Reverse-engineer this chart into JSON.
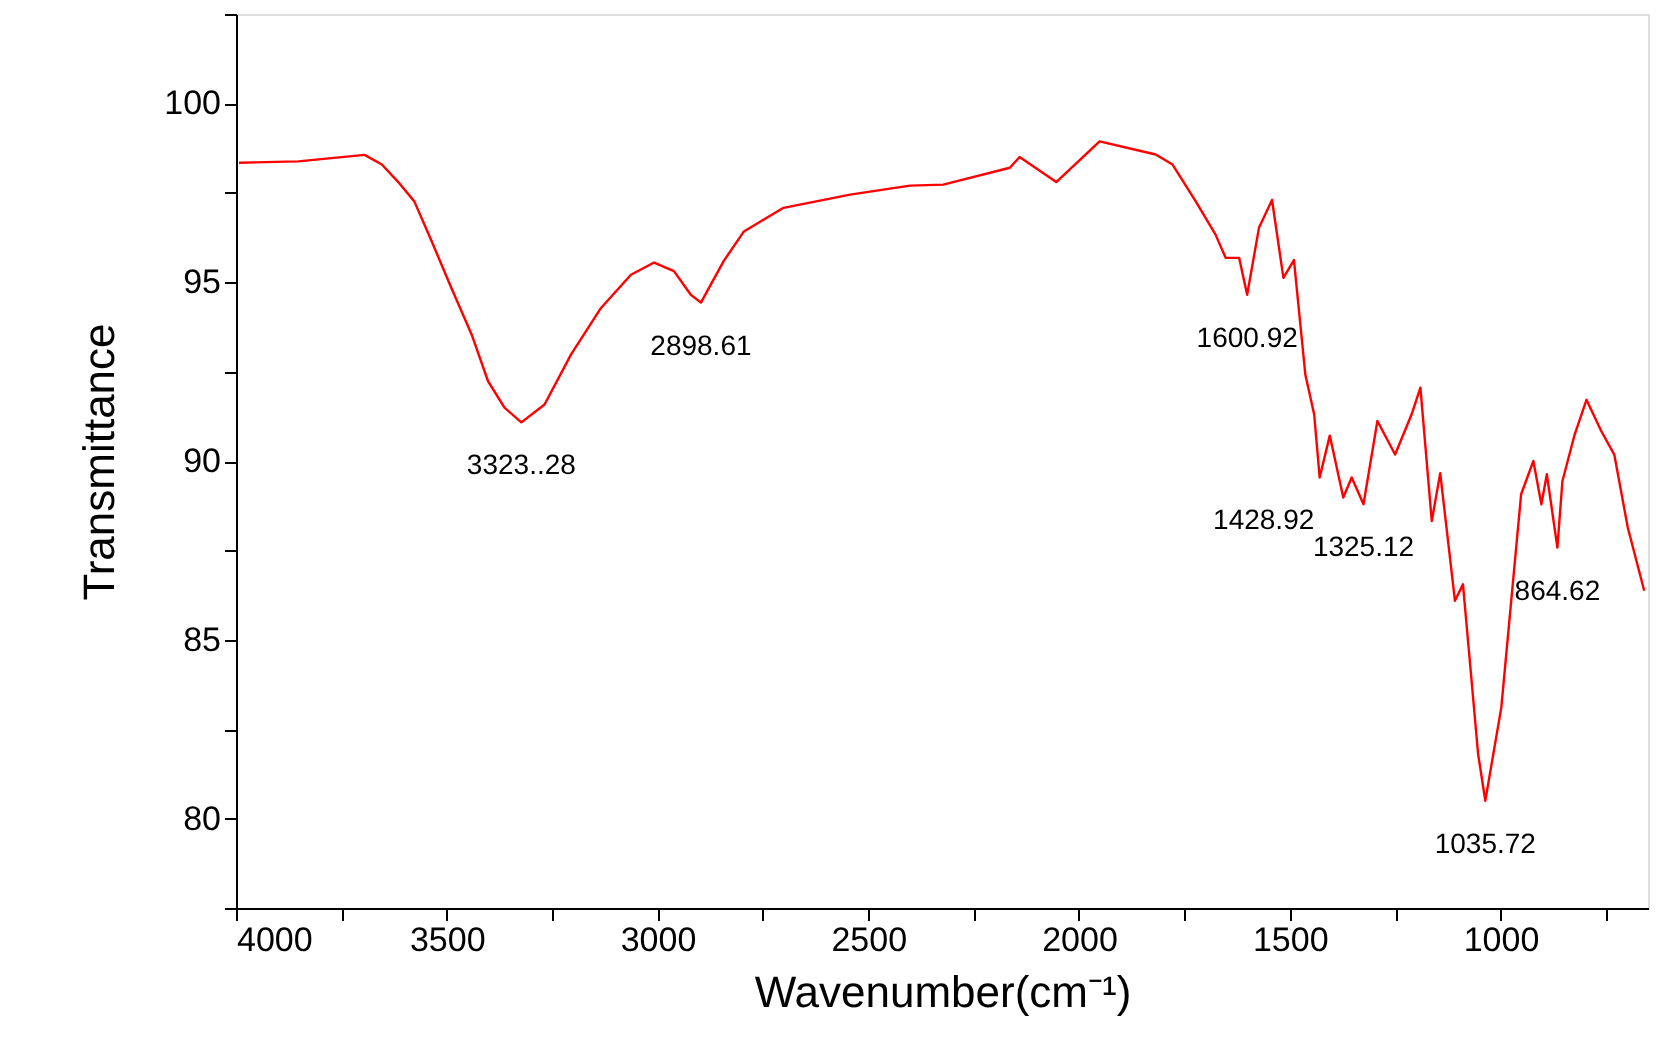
{
  "chart_data": {
    "type": "line",
    "xlabel": "Wavenumber(cm⁻¹)",
    "ylabel": "Transmittance",
    "x": [
      3993,
      3852,
      3695,
      3654,
      3615,
      3577,
      3536,
      3489,
      3441,
      3402,
      3363,
      3323,
      3268,
      3205,
      3134,
      3063,
      3008,
      2961,
      2921,
      2897,
      2843,
      2795,
      2701,
      2543,
      2401,
      2322,
      2164,
      2141,
      2054,
      1951,
      1818,
      1778,
      1723,
      1676,
      1652,
      1620,
      1601,
      1573,
      1542,
      1515,
      1490,
      1463,
      1442,
      1429,
      1405,
      1373,
      1353,
      1325,
      1292,
      1250,
      1211,
      1190,
      1163,
      1143,
      1108,
      1089,
      1053,
      1036,
      998,
      951,
      922,
      903,
      890,
      865,
      853,
      824,
      796,
      761,
      730,
      698,
      659
    ],
    "series": [
      {
        "color": "#ff0000",
        "values": [
          98.34,
          98.38,
          98.56,
          98.29,
          97.8,
          97.26,
          96.15,
          94.84,
          93.54,
          92.23,
          91.49,
          91.08,
          91.58,
          92.98,
          94.28,
          95.21,
          95.55,
          95.31,
          94.65,
          94.43,
          95.59,
          96.42,
          97.08,
          97.45,
          97.7,
          97.73,
          98.2,
          98.5,
          97.8,
          98.94,
          98.57,
          98.29,
          97.26,
          96.33,
          95.68,
          95.68,
          94.65,
          96.52,
          97.3,
          95.12,
          95.62,
          92.42,
          91.3,
          89.54,
          90.71,
          88.98,
          89.54,
          88.79,
          91.12,
          90.18,
          91.3,
          92.05,
          88.32,
          89.66,
          86.09,
          86.55,
          81.8,
          80.5,
          83.11,
          89.07,
          90.0,
          88.79,
          89.63,
          87.58,
          89.44,
          90.74,
          91.71,
          90.84,
          90.18,
          88.14,
          86.37
        ]
      }
    ],
    "xlim": [
      4000,
      650
    ],
    "ylim": [
      77.5,
      102.5
    ],
    "xticks": [
      4000,
      {
        "value": 3750,
        "label": null
      },
      3500,
      {
        "value": 3250,
        "label": null
      },
      3000,
      {
        "value": 2750,
        "label": null
      },
      2500,
      {
        "value": 2250,
        "label": null
      },
      2000,
      {
        "value": 1750,
        "label": null
      },
      1500,
      {
        "value": 1250,
        "label": null
      },
      1000,
      {
        "value": 750,
        "label": null
      }
    ],
    "yticks": [
      {
        "value": 77.5,
        "label": null
      },
      80,
      {
        "value": 82.5,
        "label": null
      },
      85,
      {
        "value": 87.5,
        "label": null
      },
      90,
      {
        "value": 92.5,
        "label": null
      },
      95,
      {
        "value": 97.5,
        "label": null
      },
      100,
      {
        "value": 102.5,
        "label": null
      }
    ],
    "annotations": [
      {
        "text": "3323..28",
        "x": 3323,
        "y": 91.08
      },
      {
        "text": "2898.61",
        "x": 2897,
        "y": 94.43
      },
      {
        "text": "1600.92",
        "x": 1601,
        "y": 94.65
      },
      {
        "text": "1428.92",
        "x": 1429,
        "y": 89.54
      },
      {
        "text": "1325.12",
        "x": 1325,
        "y": 88.79
      },
      {
        "text": "1035.72",
        "x": 1036,
        "y": 80.5
      },
      {
        "text": "864.62",
        "x": 865,
        "y": 87.58
      }
    ],
    "grid": false,
    "marker": "none",
    "line_style": "solid"
  }
}
